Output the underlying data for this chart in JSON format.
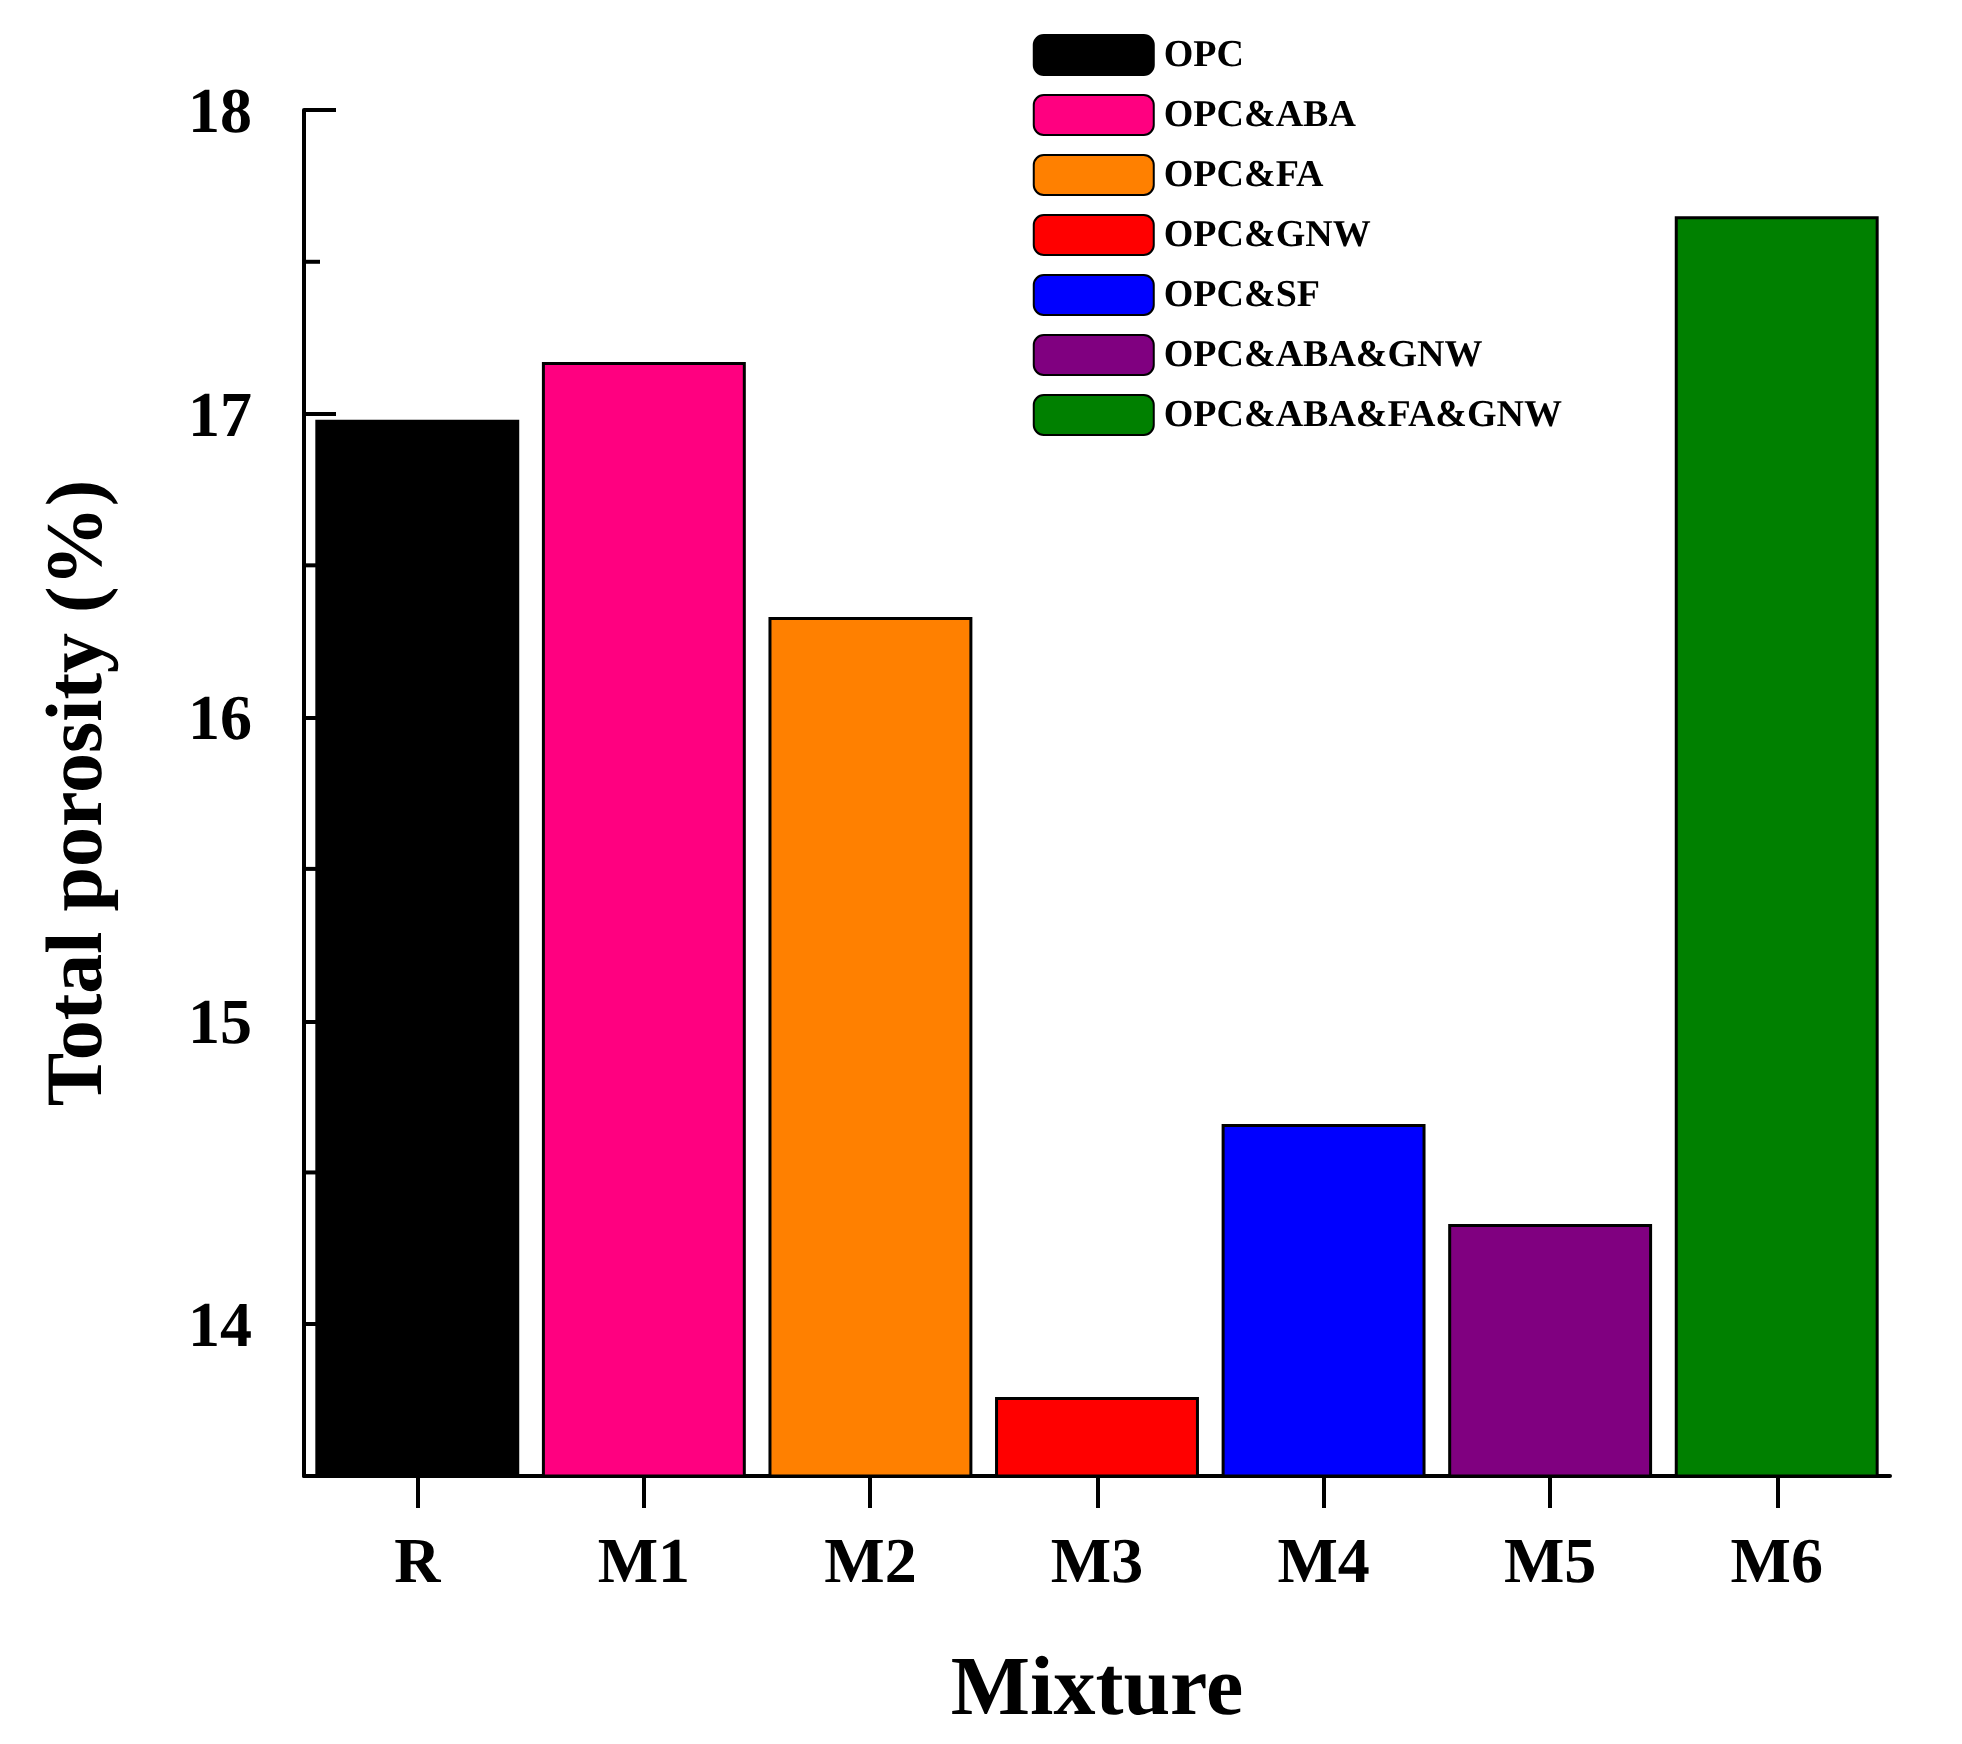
{
  "chart_data": {
    "type": "bar",
    "xlabel": "Mixture",
    "ylabel": "Total porosity (%)",
    "categories": [
      "R",
      "M1",
      "M2",
      "M3",
      "M4",
      "M5",
      "M6"
    ],
    "series": [
      {
        "name": "OPC",
        "color": "#000000",
        "values": [
          16.98,
          null,
          null,
          null,
          null,
          null,
          null
        ]
      },
      {
        "name": "OPC&ABA",
        "color": "#ff0080",
        "values": [
          null,
          17.17,
          null,
          null,
          null,
          null,
          null
        ]
      },
      {
        "name": "OPC&FA",
        "color": "#ff8000",
        "values": [
          null,
          null,
          16.33,
          null,
          null,
          null,
          null
        ]
      },
      {
        "name": "OPC&GNW",
        "color": "#ff0000",
        "values": [
          null,
          null,
          null,
          13.76,
          null,
          null,
          null
        ]
      },
      {
        "name": "OPC&SF",
        "color": "#0000ff",
        "values": [
          null,
          null,
          null,
          null,
          14.66,
          null,
          null
        ]
      },
      {
        "name": "OPC&ABA&GNW",
        "color": "#800080",
        "values": [
          null,
          null,
          null,
          null,
          null,
          14.33,
          null
        ]
      },
      {
        "name": "OPC&ABA&FA&GNW",
        "color": "#008000",
        "values": [
          null,
          null,
          null,
          null,
          null,
          null,
          17.65
        ]
      }
    ],
    "ylim": [
      13.5,
      18
    ],
    "yticks": [
      14,
      15,
      16,
      17,
      18
    ],
    "grid": false,
    "legend": "top right"
  }
}
